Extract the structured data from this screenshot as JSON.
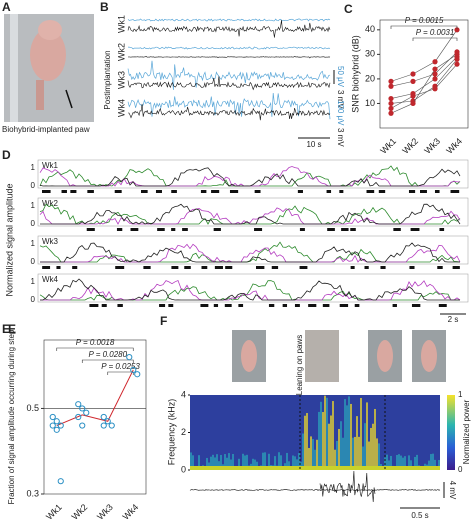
{
  "panels": {
    "A": {
      "letter": "A",
      "caption": "Biohybrid-implanted paw"
    },
    "B": {
      "letter": "B",
      "rows": [
        "Wk1",
        "Wk2",
        "Wk3",
        "Wk4"
      ],
      "ylabel": "Postimplantation",
      "scale_wk3": [
        "50 μV",
        "3 mV"
      ],
      "scale_wk4": [
        "100 μV",
        "3 mV"
      ],
      "time_scale": "10 s"
    },
    "D": {
      "letter": "D",
      "rows": [
        "Wk1",
        "Wk2",
        "Wk3",
        "Wk4"
      ],
      "ylabel": "Normalized signal amplitude",
      "row_ticks": [
        0,
        1
      ],
      "time_scale": "2 s"
    },
    "F": {
      "letter": "F",
      "ylabel": "Frequency (kHz)",
      "yticks": [
        0,
        2,
        4
      ],
      "colorbar_label": "Normalized power",
      "colorbar_ticks": [
        0,
        1
      ],
      "annotation": "Leaning on paws",
      "amp_scale": "4 mV",
      "time_scale": "0.5 s"
    }
  },
  "chart_data": [
    {
      "type": "paired-scatter",
      "letter": "C",
      "ylabel": "SNR biohybrid (dB)",
      "categories": [
        "Wk1",
        "Wk2",
        "Wk3",
        "Wk4"
      ],
      "color": "#c0272d",
      "line_color": "#555",
      "series": [
        {
          "values": [
            19,
            22,
            27,
            40
          ]
        },
        {
          "values": [
            17,
            19,
            22,
            31
          ]
        },
        {
          "values": [
            12,
            14,
            20,
            29
          ]
        },
        {
          "values": [
            10,
            11,
            17,
            28
          ]
        },
        {
          "values": [
            8,
            13,
            16,
            26
          ]
        },
        {
          "values": [
            6,
            10,
            24,
            30
          ]
        }
      ],
      "ylim": [
        0,
        44
      ],
      "yticks": [
        10,
        20,
        30,
        40
      ],
      "annotations": [
        "P = 0.0015",
        "P = 0.0031"
      ]
    },
    {
      "type": "group-scatter",
      "letter": "E",
      "ylabel": "Fraction of signal amplitude occurring during step",
      "categories": [
        "Wk1",
        "Wk2",
        "Wk3",
        "Wk4"
      ],
      "color": "#2a8fc4",
      "mean_color": "#d0282e",
      "groups": [
        [
          0.48,
          0.47,
          0.46,
          0.46,
          0.45,
          0.33
        ],
        [
          0.51,
          0.5,
          0.49,
          0.48,
          0.46
        ],
        [
          0.48,
          0.47,
          0.46,
          0.46
        ],
        [
          0.62,
          0.59,
          0.58
        ]
      ],
      "means": [
        0.46,
        0.485,
        0.47,
        0.59
      ],
      "reference": 0.5,
      "ylim": [
        0.3,
        0.66
      ],
      "yticks": [
        0.3,
        0.5
      ],
      "annotations": [
        "P = 0.0018",
        "P = 0.0280",
        "P = 0.0253"
      ]
    }
  ]
}
